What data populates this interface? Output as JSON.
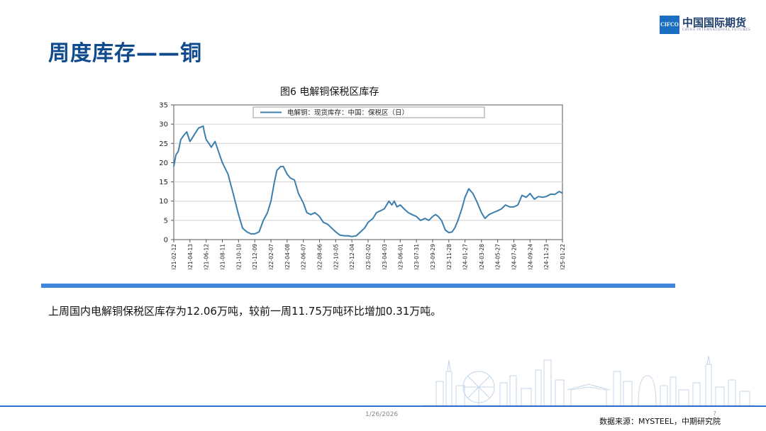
{
  "slide": {
    "title": "周度库存——铜",
    "body_text": "上周国内电解铜保税区库存为12.06万吨，较前一周11.75万吨环比增加0.31万吨。",
    "date": "1/26/2026",
    "page_number": "7",
    "source": "数据来源：MYSTEEL，中期研究院",
    "accent_color": "#3f86db",
    "title_color": "#0f4a8c"
  },
  "logo": {
    "mark": "CIFCO",
    "name_cn": "中国国际期货",
    "name_en": "CHINA INTERNATIONAL FUTURES"
  },
  "chart_data": {
    "type": "line",
    "title": "图6 电解铜保税区库存",
    "legend": "电解铜：现货库存：中国：保税区（日）",
    "legend_position": "top-center",
    "grid": true,
    "ylim": [
      0,
      35
    ],
    "yticks": [
      0,
      5,
      10,
      15,
      20,
      25,
      30,
      35
    ],
    "xticks": [
      "2021-02-12",
      "2021-04-13",
      "2021-06-12",
      "2021-08-11",
      "2021-10-10",
      "2021-12-09",
      "2022-02-07",
      "2022-04-08",
      "2022-06-07",
      "2022-08-06",
      "2022-10-05",
      "2022-12-04",
      "2023-02-02",
      "2023-04-03",
      "2023-06-01",
      "2023-07-31",
      "2023-09-29",
      "2023-11-28",
      "2024-01-27",
      "2024-03-28",
      "2024-05-27",
      "2024-07-26",
      "2024-09-24",
      "2024-11-23",
      "2025-01-22"
    ],
    "line_color": "#3b7fae",
    "series": [
      {
        "name": "电解铜：现货库存：中国：保税区（日）",
        "x": [
          "2021-02-12",
          "2021-02-20",
          "2021-03-01",
          "2021-03-10",
          "2021-03-20",
          "2021-04-01",
          "2021-04-13",
          "2021-04-18",
          "2021-05-01",
          "2021-05-15",
          "2021-06-01",
          "2021-06-05",
          "2021-06-12",
          "2021-06-22",
          "2021-07-01",
          "2021-07-15",
          "2021-08-01",
          "2021-08-11",
          "2021-09-01",
          "2021-09-20",
          "2021-10-10",
          "2021-10-25",
          "2021-11-10",
          "2021-11-25",
          "2021-12-09",
          "2021-12-25",
          "2022-01-10",
          "2022-01-25",
          "2022-02-07",
          "2022-02-20",
          "2022-03-01",
          "2022-03-15",
          "2022-03-25",
          "2022-04-08",
          "2022-04-20",
          "2022-05-05",
          "2022-05-20",
          "2022-06-07",
          "2022-06-20",
          "2022-07-05",
          "2022-07-20",
          "2022-08-06",
          "2022-08-20",
          "2022-09-05",
          "2022-09-20",
          "2022-10-05",
          "2022-10-20",
          "2022-11-05",
          "2022-11-20",
          "2022-12-04",
          "2022-12-20",
          "2023-01-05",
          "2023-01-20",
          "2023-02-02",
          "2023-02-20",
          "2023-03-05",
          "2023-03-20",
          "2023-04-03",
          "2023-04-20",
          "2023-05-01",
          "2023-05-10",
          "2023-05-20",
          "2023-06-01",
          "2023-06-15",
          "2023-07-01",
          "2023-07-15",
          "2023-07-31",
          "2023-08-15",
          "2023-09-01",
          "2023-09-15",
          "2023-09-29",
          "2023-10-10",
          "2023-10-20",
          "2023-11-01",
          "2023-11-15",
          "2023-11-28",
          "2023-12-10",
          "2023-12-20",
          "2024-01-01",
          "2024-01-15",
          "2024-01-27",
          "2024-02-10",
          "2024-02-25",
          "2024-03-10",
          "2024-03-28",
          "2024-04-10",
          "2024-04-25",
          "2024-05-10",
          "2024-05-27",
          "2024-06-10",
          "2024-06-25",
          "2024-07-10",
          "2024-07-26",
          "2024-08-10",
          "2024-08-25",
          "2024-09-10",
          "2024-09-24",
          "2024-10-10",
          "2024-10-25",
          "2024-11-10",
          "2024-11-23",
          "2024-12-10",
          "2024-12-25",
          "2025-01-10",
          "2025-01-22"
        ],
        "y": [
          19,
          22,
          23,
          26,
          27,
          28,
          25.5,
          26,
          27.5,
          29,
          29.5,
          28,
          26,
          25,
          24,
          25.5,
          22,
          20,
          17,
          12,
          6.5,
          3,
          2,
          1.5,
          1.5,
          2,
          5,
          7,
          10,
          15,
          18,
          19,
          19,
          17,
          16,
          15.5,
          12,
          9.5,
          7,
          6.5,
          7,
          6,
          4.5,
          4,
          3,
          2,
          1.2,
          1,
          1,
          0.8,
          1,
          2,
          3,
          4.5,
          5.5,
          7,
          7.5,
          8,
          10,
          9,
          10,
          8.5,
          9,
          8,
          7,
          6.5,
          6,
          5,
          5.5,
          5,
          6,
          6.5,
          6,
          5,
          2.5,
          1.8,
          2,
          3,
          5,
          8,
          11,
          13.2,
          12,
          10,
          7,
          5.5,
          6.5,
          7,
          7.5,
          8,
          9,
          8.5,
          8.5,
          9,
          11.5,
          11,
          12,
          10.5,
          11.2,
          11,
          11.2,
          11.8,
          11.75,
          12.5,
          12.06
        ]
      }
    ]
  }
}
